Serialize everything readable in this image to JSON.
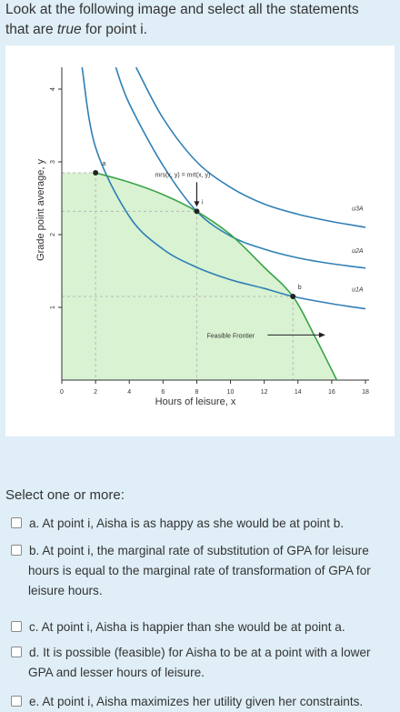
{
  "question": {
    "line1": "Look at the following image and select all the statements",
    "line2_pre": "that are ",
    "line2_em": "true",
    "line2_post": " for point i."
  },
  "figure": {
    "ylabel": "Grade point average, y",
    "xlabel": "Hours of leisure, x",
    "x_ticks": [
      "0",
      "2",
      "4",
      "6",
      "8",
      "10",
      "12",
      "14",
      "16",
      "18"
    ],
    "y_ticks": [
      "1",
      "2",
      "3",
      "4"
    ],
    "point_a": "a",
    "point_i": "i",
    "point_b": "b",
    "annotation": "mrs(x, y) = mrt(x, y)",
    "frontier_label": "Feasible Frontier",
    "curve_labels": [
      "u3A",
      "u2A",
      "u1A"
    ],
    "colors": {
      "indifference": "#2f7fb5",
      "frontier": "#3aa34a",
      "feasible_fill": "#d8f2d2",
      "dashed": "#b8b8b8"
    }
  },
  "chart_data": {
    "type": "line",
    "xlabel": "Hours of leisure, x",
    "ylabel": "Grade point average, y",
    "xlim": [
      0,
      18
    ],
    "ylim": [
      0,
      4.3
    ],
    "x_ticks": [
      0,
      2,
      4,
      6,
      8,
      10,
      12,
      14,
      16,
      18
    ],
    "y_ticks": [
      1,
      2,
      3,
      4
    ],
    "series": [
      {
        "name": "Feasible Frontier",
        "x": [
          2,
          4,
          6,
          8,
          10,
          12,
          13.7,
          15,
          16.3
        ],
        "y": [
          2.85,
          2.72,
          2.55,
          2.32,
          2.0,
          1.55,
          1.15,
          0.6,
          0.0
        ]
      },
      {
        "name": "u1A",
        "x": [
          1.2,
          2,
          4,
          6,
          8,
          10,
          12,
          13.7,
          16,
          18
        ],
        "y": [
          4.3,
          3.2,
          2.25,
          1.8,
          1.55,
          1.38,
          1.26,
          1.15,
          1.05,
          0.98
        ]
      },
      {
        "name": "u2A",
        "x": [
          3.2,
          4,
          6,
          8,
          10,
          12,
          14,
          16,
          18
        ],
        "y": [
          4.3,
          3.8,
          2.95,
          2.32,
          1.98,
          1.8,
          1.68,
          1.6,
          1.54
        ]
      },
      {
        "name": "u3A",
        "x": [
          4.4,
          6,
          8,
          10,
          12,
          14,
          16,
          18
        ],
        "y": [
          4.3,
          3.6,
          3.0,
          2.65,
          2.42,
          2.28,
          2.18,
          2.1
        ]
      }
    ],
    "points": [
      {
        "label": "a",
        "x": 2.0,
        "y": 2.85
      },
      {
        "label": "i",
        "x": 8.0,
        "y": 2.32
      },
      {
        "label": "b",
        "x": 13.7,
        "y": 1.15
      }
    ]
  },
  "select_label": "Select one or more:",
  "options": [
    {
      "id": "a",
      "lines": [
        "a. At point i, Aisha is as happy as she would be at point b."
      ]
    },
    {
      "id": "b",
      "lines": [
        "b. At point i, the marginal rate of substitution of GPA for leisure",
        "hours is equal to the marginal rate of transformation of GPA for",
        "leisure hours."
      ]
    },
    {
      "id": "c",
      "lines": [
        "c. At point i, Aisha is happier than she would be at point a."
      ]
    },
    {
      "id": "d",
      "lines": [
        "d. It is possible (feasible) for Aisha to be at a point with a lower",
        "GPA and lesser hours of leisure."
      ]
    },
    {
      "id": "e",
      "lines": [
        "e. At point i, Aisha maximizes her utility given her constraints."
      ]
    }
  ]
}
